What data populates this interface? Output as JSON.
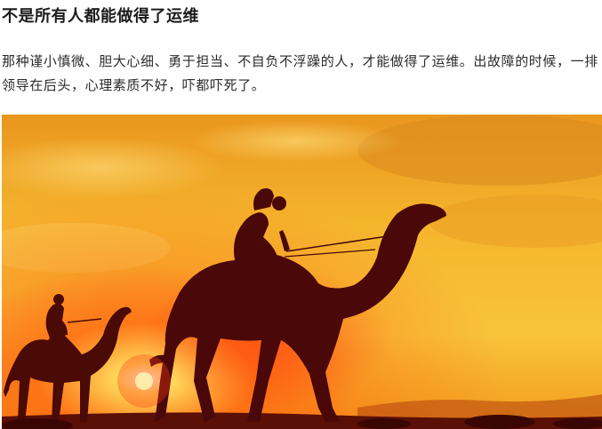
{
  "article": {
    "title": "不是所有人都能做得了运维",
    "body": "那种谨小慎微、胆大心细、勇于担当、不自负不浮躁的人，才能做得了运维。出故障的时候，一排领导在后头，心理素质不好，吓都吓死了。",
    "image": {
      "subject": "camel-caravan-sunset",
      "colors": {
        "sky_top": "#f4a72a",
        "sky_mid": "#f6c23a",
        "horizon": "#ff5a10",
        "silhouette": "#4a0a05",
        "sun": "#fff6c8"
      }
    }
  }
}
